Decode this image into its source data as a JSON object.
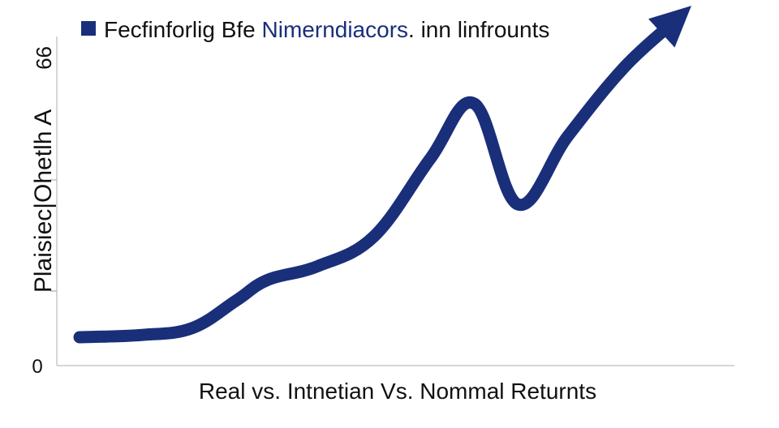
{
  "chart_data": {
    "type": "line",
    "title_parts": [
      {
        "text": "Fecfinforlig Bfe ",
        "color": "#111111"
      },
      {
        "text": "Nimerndiacors",
        "color": "#1a2f7a"
      },
      {
        "text": ".  inn linfrounts",
        "color": "#111111"
      }
    ],
    "legend_marker_color": "#1a2f7a",
    "xlabel": "Real vs.  Intnetian Vs.  Nommal Returnts",
    "ylabel": "Plaisiec|Ohetlh A",
    "y_tick_labels": {
      "top": "66",
      "bottom": "0"
    },
    "ylim": [
      0,
      66
    ],
    "xlim": [
      0,
      100
    ],
    "grid": false,
    "arrow_end": true,
    "series": [
      {
        "color": "#1a2f7a",
        "x": [
          0,
          10,
          18,
          25,
          30,
          38,
          47,
          56,
          63,
          70,
          78,
          87,
          95
        ],
        "y": [
          3,
          3.5,
          5,
          11,
          15.5,
          18.5,
          25,
          42,
          54,
          32,
          47,
          62,
          72
        ]
      }
    ]
  }
}
